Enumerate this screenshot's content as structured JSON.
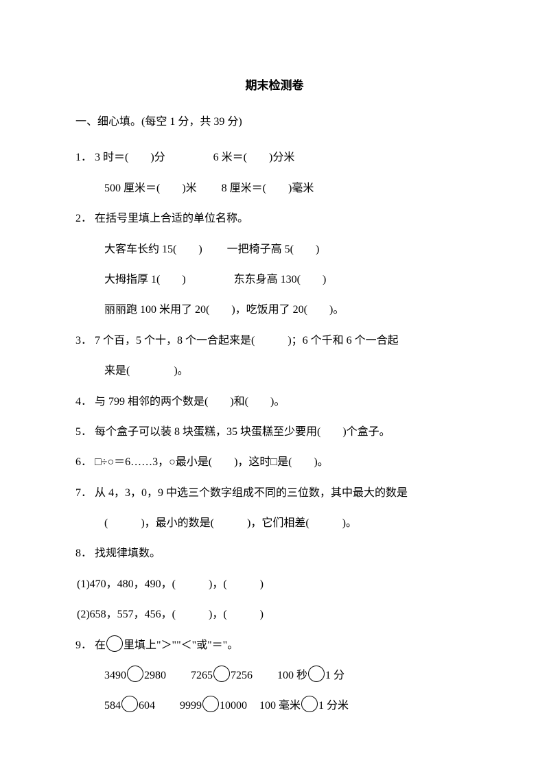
{
  "title": "期末检测卷",
  "section1": {
    "header": "一、细心填。(每空 1 分，共 39 分)",
    "q1": {
      "num": "1．",
      "a": "3 时＝(　　)分",
      "b": "6 米＝(　　)分米",
      "c": "500 厘米＝(　　)米",
      "d": "8 厘米＝(　　)毫米"
    },
    "q2": {
      "num": "2．",
      "head": "在括号里填上合适的单位名称。",
      "a": "大客车长约 15(　　)",
      "b": "一把椅子高 5(　　)",
      "c": "大拇指厚 1(　　)",
      "d": "东东身高 130(　　)",
      "e": "丽丽跑 100 米用了 20(　　)，吃饭用了 20(　　)。"
    },
    "q3": {
      "num": "3．",
      "a": "7 个百，5 个十，8 个一合起来是(　　　)；6 个千和 6 个一合起",
      "b": "来是(　　　　)。"
    },
    "q4": {
      "num": "4．",
      "text": "与 799 相邻的两个数是(　　)和(　　)。"
    },
    "q5": {
      "num": "5．",
      "text": "每个盒子可以装 8 块蛋糕，35 块蛋糕至少要用(　　)个盒子。"
    },
    "q6": {
      "num": "6．",
      "text": "□÷○＝6……3，○最小是(　　)，这时□是(　　)。"
    },
    "q7": {
      "num": "7．",
      "a": "从 4，3，0，9 中选三个数字组成不同的三位数，其中最大的数是",
      "b": "(　　　)，最小的数是(　　　)，它们相差(　　　)。"
    },
    "q8": {
      "num": "8．",
      "head": "找规律填数。",
      "s1": "(1)470，480，490，(　　　)，(　　　)",
      "s2": "(2)658，557，456，(　　　)，(　　　)"
    },
    "q9": {
      "num": "9．",
      "head_a": "在",
      "head_b": "里填上\"＞\"\"＜\"或\"＝\"。",
      "r1a": "3490",
      "r1b": "2980",
      "r1c": "7265",
      "r1d": "7256",
      "r1e": "100 秒",
      "r1f": "1 分",
      "r2a": "584",
      "r2b": "604",
      "r2c": "9999",
      "r2d": "10000",
      "r2e": "100 毫米",
      "r2f": "1 分米"
    }
  }
}
